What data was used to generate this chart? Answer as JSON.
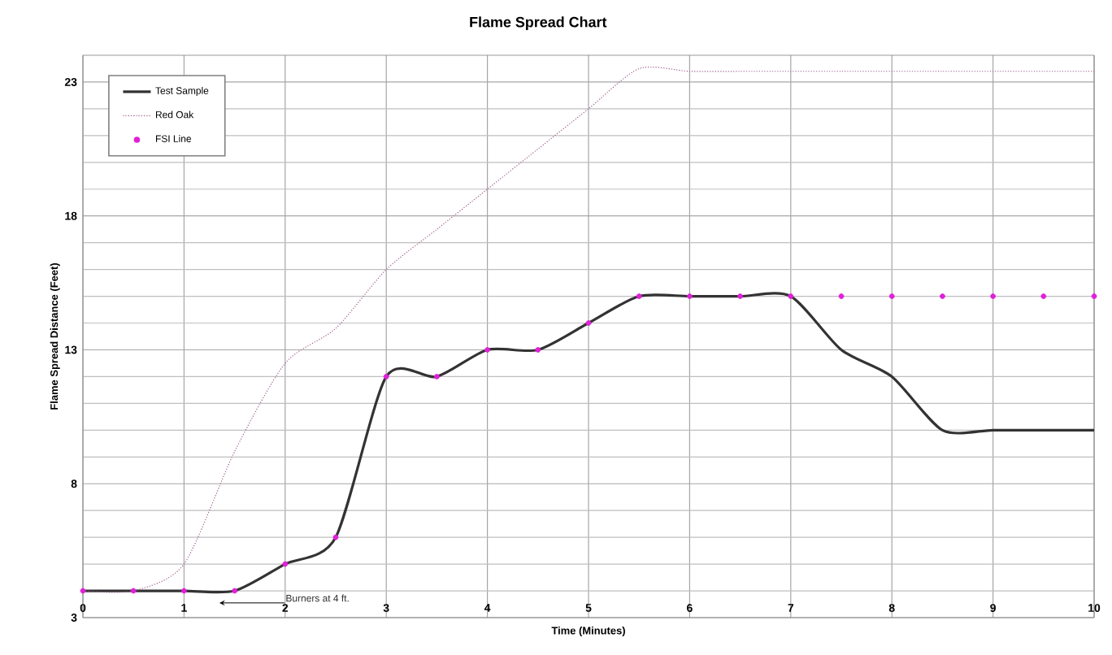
{
  "chart_data": {
    "type": "line",
    "title": "Flame Spread Chart",
    "xlabel": "Time (Minutes)",
    "ylabel": "Flame Spread Distance (Feet)",
    "x": [
      0,
      0.5,
      1,
      1.5,
      2,
      2.5,
      3,
      3.5,
      4,
      4.5,
      5,
      5.5,
      6,
      6.5,
      7,
      7.5,
      8,
      8.5,
      9,
      9.5,
      10
    ],
    "series": [
      {
        "name": "Test Sample",
        "color": "#333333",
        "line_style": "solid",
        "marker": "none",
        "values": [
          4,
          4,
          4,
          4,
          5,
          6,
          12,
          12,
          13,
          13,
          14,
          15,
          15,
          15,
          15,
          13,
          12,
          10,
          10,
          10,
          10
        ]
      },
      {
        "name": "Red Oak",
        "color": "#9c5a8c",
        "line_style": "dotted",
        "marker": "none",
        "values": [
          4,
          4,
          5,
          9.2,
          12.5,
          13.8,
          16,
          17.5,
          19,
          20.5,
          22,
          23.5,
          23.4,
          23.4,
          23.4,
          23.4,
          23.4,
          23.4,
          23.4,
          23.4,
          23.4
        ]
      },
      {
        "name": "FSI Line",
        "type": "scatter",
        "color": "#e020d8",
        "marker": "circle",
        "values": [
          4,
          4,
          4,
          4,
          5,
          6,
          12,
          12,
          13,
          13,
          14,
          15,
          15,
          15,
          15,
          15,
          15,
          15,
          15,
          15,
          15
        ]
      }
    ],
    "xlim": [
      0,
      10
    ],
    "ylim": [
      3,
      24
    ],
    "xticks": [
      0,
      1,
      2,
      3,
      4,
      5,
      6,
      7,
      8,
      9,
      10
    ],
    "yticks": [
      3,
      8,
      13,
      18,
      23
    ],
    "grid": true,
    "legend": "top left",
    "annotations": [
      {
        "text": "Burners at 4 ft.",
        "x": 1.35,
        "y": 3.55
      }
    ]
  }
}
